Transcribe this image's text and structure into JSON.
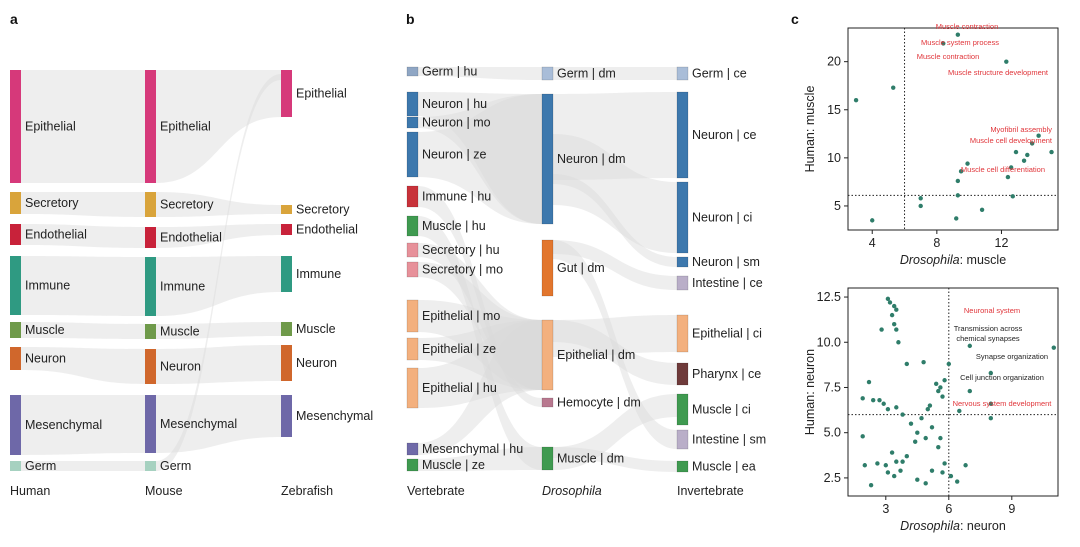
{
  "figure": {
    "panels": [
      "a",
      "b",
      "c"
    ]
  },
  "chart_data": [
    {
      "type": "sankey",
      "panel": "a",
      "columns": [
        "Human",
        "Mouse",
        "Zebrafish"
      ],
      "nodes": [
        [
          {
            "label": "Epithelial",
            "color": "#d6397a"
          },
          {
            "label": "Secretory",
            "color": "#d9a43b"
          },
          {
            "label": "Endothelial",
            "color": "#c8223a"
          },
          {
            "label": "Immune",
            "color": "#2f9a82"
          },
          {
            "label": "Muscle",
            "color": "#6f9a4a"
          },
          {
            "label": "Neuron",
            "color": "#d0672c"
          },
          {
            "label": "Mesenchymal",
            "color": "#6e68a8"
          },
          {
            "label": "Germ",
            "color": "#a6d1c0"
          }
        ],
        [
          {
            "label": "Epithelial",
            "color": "#d6397a"
          },
          {
            "label": "Secretory",
            "color": "#d9a43b"
          },
          {
            "label": "Endothelial",
            "color": "#c8223a"
          },
          {
            "label": "Immune",
            "color": "#2f9a82"
          },
          {
            "label": "Muscle",
            "color": "#6f9a4a"
          },
          {
            "label": "Neuron",
            "color": "#d0672c"
          },
          {
            "label": "Mesenchymal",
            "color": "#6e68a8"
          },
          {
            "label": "Germ",
            "color": "#a6d1c0"
          }
        ],
        [
          {
            "label": "Epithelial",
            "color": "#d6397a"
          },
          {
            "label": "Secretory",
            "color": "#d9a43b"
          },
          {
            "label": "Endothelial",
            "color": "#c8223a"
          },
          {
            "label": "Immune",
            "color": "#2f9a82"
          },
          {
            "label": "Muscle",
            "color": "#6f9a4a"
          },
          {
            "label": "Neuron",
            "color": "#d0672c"
          },
          {
            "label": "Mesenchymal",
            "color": "#6e68a8"
          }
        ]
      ]
    },
    {
      "type": "sankey",
      "panel": "b",
      "columns": [
        "Vertebrate",
        "Drosophila",
        "Invertebrate"
      ],
      "nodes": [
        [
          {
            "label": "Germ | hu",
            "color": "#8fa6c4"
          },
          {
            "label": "Neuron | hu",
            "color": "#3d78ad"
          },
          {
            "label": "Neuron | mo",
            "color": "#3d78ad"
          },
          {
            "label": "Neuron | ze",
            "color": "#3d78ad"
          },
          {
            "label": "Immune | hu",
            "color": "#c8323a"
          },
          {
            "label": "Muscle | hu",
            "color": "#3f9a50"
          },
          {
            "label": "Secretory | hu",
            "color": "#e7919a"
          },
          {
            "label": "Secretory | mo",
            "color": "#e7919a"
          },
          {
            "label": "Epithelial | mo",
            "color": "#f3b07e"
          },
          {
            "label": "Epithelial | ze",
            "color": "#f3b07e"
          },
          {
            "label": "Epithelial | hu",
            "color": "#f3b07e"
          },
          {
            "label": "Mesenchymal | hu",
            "color": "#6f6aa8"
          },
          {
            "label": "Muscle | ze",
            "color": "#3f9a50"
          }
        ],
        [
          {
            "label": "Germ | dm",
            "color": "#a9bdd8"
          },
          {
            "label": "Neuron | dm",
            "color": "#3d78ad"
          },
          {
            "label": "Gut | dm",
            "color": "#e2762d"
          },
          {
            "label": "Epithelial | dm",
            "color": "#f3b07e"
          },
          {
            "label": "Hemocyte | dm",
            "color": "#b8788f"
          },
          {
            "label": "Muscle | dm",
            "color": "#3f9a50"
          }
        ],
        [
          {
            "label": "Germ | ce",
            "color": "#a9bdd8"
          },
          {
            "label": "Neuron | ce",
            "color": "#3d78ad"
          },
          {
            "label": "Neuron | ci",
            "color": "#3d78ad"
          },
          {
            "label": "Neuron | sm",
            "color": "#3d78ad"
          },
          {
            "label": "Intestine | ce",
            "color": "#b9aec8"
          },
          {
            "label": "Epithelial | ci",
            "color": "#f3b07e"
          },
          {
            "label": "Pharynx | ce",
            "color": "#6e3a3a"
          },
          {
            "label": "Muscle | ci",
            "color": "#3f9a50"
          },
          {
            "label": "Intestine | sm",
            "color": "#b9aec8"
          },
          {
            "label": "Muscle | ea",
            "color": "#3f9a50"
          }
        ]
      ]
    },
    {
      "type": "scatter",
      "panel": "c-top",
      "xlabel_italic": "Drosophila",
      "xlabel_rest": ": muscle",
      "ylabel": "Human: muscle",
      "xlim": [
        2.5,
        15.5
      ],
      "ylim": [
        2.5,
        23.5
      ],
      "xticks": [
        4,
        8,
        12
      ],
      "yticks": [
        5,
        10,
        15,
        20
      ],
      "threshold_x": 6,
      "threshold_y": 6.1,
      "point_color": "#2f7d6a",
      "points": [
        [
          3,
          16
        ],
        [
          4,
          3.5
        ],
        [
          5.3,
          17.3
        ],
        [
          7,
          5.8
        ],
        [
          7,
          5
        ],
        [
          8.4,
          21.9
        ],
        [
          9.3,
          22.8
        ],
        [
          9.2,
          3.7
        ],
        [
          9.3,
          6.1
        ],
        [
          9.3,
          7.6
        ],
        [
          9.5,
          8.6
        ],
        [
          9.9,
          9.4
        ],
        [
          10.8,
          4.6
        ],
        [
          12.3,
          20
        ],
        [
          12.4,
          8
        ],
        [
          12.6,
          9
        ],
        [
          12.7,
          6
        ],
        [
          12.9,
          10.6
        ],
        [
          13.6,
          10.3
        ],
        [
          13.9,
          11.5
        ],
        [
          13.4,
          9.7
        ],
        [
          14.3,
          12.3
        ],
        [
          15.1,
          10.6
        ]
      ],
      "annotations": [
        {
          "text": "Muscle contraction",
          "color": "#e0353a"
        },
        {
          "text": "Muscle system process",
          "color": "#e0353a"
        },
        {
          "text": "Muscle contraction",
          "color": "#e0353a"
        },
        {
          "text": "Muscle structure development",
          "color": "#e0353a"
        },
        {
          "text": "Myofibril assembly",
          "color": "#e0353a"
        },
        {
          "text": "Muscle cell development",
          "color": "#e0353a"
        },
        {
          "text": "Muscle cell differentiation",
          "color": "#e0353a"
        }
      ]
    },
    {
      "type": "scatter",
      "panel": "c-bottom",
      "xlabel_italic": "Drosophila",
      "xlabel_rest": ": neuron",
      "ylabel": "Human: neuron",
      "xlim": [
        1.2,
        11.2
      ],
      "ylim": [
        1.5,
        13
      ],
      "xticks": [
        3,
        6,
        9
      ],
      "yticks": [
        2.5,
        5.0,
        7.5,
        10.0,
        12.5
      ],
      "threshold_x": 6,
      "threshold_y": 6,
      "point_color": "#2f7d6a",
      "points": [
        [
          3.1,
          12.4
        ],
        [
          3.2,
          12.2
        ],
        [
          3.4,
          12
        ],
        [
          3.5,
          11.8
        ],
        [
          3.3,
          11.5
        ],
        [
          3.4,
          11
        ],
        [
          3.5,
          10.7
        ],
        [
          2.8,
          10.7
        ],
        [
          3.6,
          10
        ],
        [
          4.0,
          8.8
        ],
        [
          4.8,
          8.9
        ],
        [
          5.1,
          6.5
        ],
        [
          5.4,
          7.7
        ],
        [
          5.5,
          7.3
        ],
        [
          5.6,
          7.5
        ],
        [
          5.8,
          7.9
        ],
        [
          5.7,
          7.0
        ],
        [
          6.0,
          8.8
        ],
        [
          6.5,
          6.2
        ],
        [
          7.0,
          7.3
        ],
        [
          7.0,
          9.8
        ],
        [
          8.0,
          8.3
        ],
        [
          8.0,
          6.6
        ],
        [
          8.0,
          5.8
        ],
        [
          11,
          9.7
        ],
        [
          2.2,
          7.8
        ],
        [
          1.9,
          6.9
        ],
        [
          1.9,
          4.8
        ],
        [
          2.4,
          6.8
        ],
        [
          2.7,
          6.8
        ],
        [
          2.9,
          6.6
        ],
        [
          3.1,
          6.3
        ],
        [
          3.5,
          6.4
        ],
        [
          3.8,
          6.0
        ],
        [
          4.2,
          5.5
        ],
        [
          4.5,
          5.0
        ],
        [
          4.4,
          4.5
        ],
        [
          4.7,
          5.8
        ],
        [
          5.0,
          6.3
        ],
        [
          4.9,
          4.7
        ],
        [
          5.2,
          5.3
        ],
        [
          5.6,
          4.7
        ],
        [
          5.5,
          4.2
        ],
        [
          5.8,
          3.3
        ],
        [
          4.0,
          3.7
        ],
        [
          3.3,
          3.9
        ],
        [
          3.5,
          3.4
        ],
        [
          3.8,
          3.4
        ],
        [
          3.0,
          3.2
        ],
        [
          2.6,
          3.3
        ],
        [
          2.0,
          3.2
        ],
        [
          3.1,
          2.8
        ],
        [
          3.4,
          2.6
        ],
        [
          3.7,
          2.9
        ],
        [
          4.5,
          2.4
        ],
        [
          4.9,
          2.2
        ],
        [
          5.7,
          2.8
        ],
        [
          6.1,
          2.6
        ],
        [
          6.4,
          2.3
        ],
        [
          6.8,
          3.2
        ],
        [
          5.2,
          2.9
        ],
        [
          2.3,
          2.1
        ]
      ],
      "annotations": [
        {
          "text": "Neuronal system",
          "color": "#e0353a"
        },
        {
          "text": "Transmission across",
          "color": "#222222"
        },
        {
          "text": "chemical synapses",
          "color": "#222222"
        },
        {
          "text": "Synapse organization",
          "color": "#222222"
        },
        {
          "text": "Cell junction organization",
          "color": "#222222"
        },
        {
          "text": "Nervous system development",
          "color": "#e0353a"
        }
      ]
    }
  ]
}
